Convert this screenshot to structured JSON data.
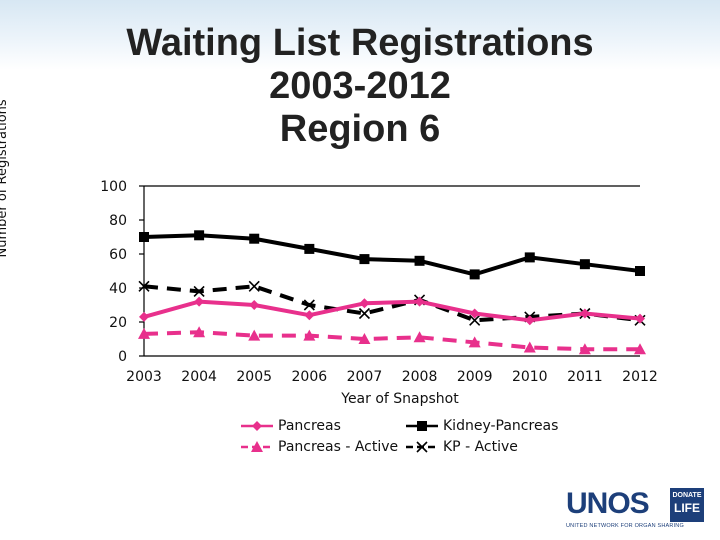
{
  "title": {
    "line1": "Waiting List Registrations",
    "line2": "2003-2012",
    "line3": "Region 6"
  },
  "logo": {
    "text": "UNOS",
    "badge_top": "DONATE",
    "badge_bottom": "LIFE",
    "subtitle": "UNITED NETWORK FOR ORGAN SHARING"
  },
  "colors": {
    "pancreas": "#e8308c",
    "black": "#000000",
    "axis": "#000000"
  },
  "chart_data": {
    "type": "line",
    "title": "Waiting List Registrations 2003-2012 Region 6",
    "xlabel": "Year of Snapshot",
    "ylabel": "Number of Registrations",
    "ylim": [
      0,
      100
    ],
    "yticks": [
      0,
      20,
      40,
      60,
      80,
      100
    ],
    "x": [
      "2003",
      "2004",
      "2005",
      "2006",
      "2007",
      "2008",
      "2009",
      "2010",
      "2011",
      "2012"
    ],
    "grid": "horizontal at top only",
    "legend_position": "bottom",
    "series": [
      {
        "name": "Pancreas",
        "color": "#e8308c",
        "dash": "solid",
        "marker": "diamond",
        "values": [
          23,
          32,
          30,
          24,
          31,
          32,
          25,
          21,
          25,
          22
        ]
      },
      {
        "name": "Kidney-Pancreas",
        "color": "#000000",
        "dash": "solid",
        "marker": "square",
        "values": [
          70,
          71,
          69,
          63,
          57,
          56,
          48,
          58,
          54,
          50
        ]
      },
      {
        "name": "Pancreas - Active",
        "color": "#e8308c",
        "dash": "dashed",
        "marker": "triangle",
        "values": [
          13,
          14,
          12,
          12,
          10,
          11,
          8,
          5,
          4,
          4
        ]
      },
      {
        "name": "KP - Active",
        "color": "#000000",
        "dash": "dashed",
        "marker": "x",
        "values": [
          41,
          38,
          41,
          30,
          25,
          33,
          21,
          23,
          25,
          21
        ]
      }
    ]
  }
}
